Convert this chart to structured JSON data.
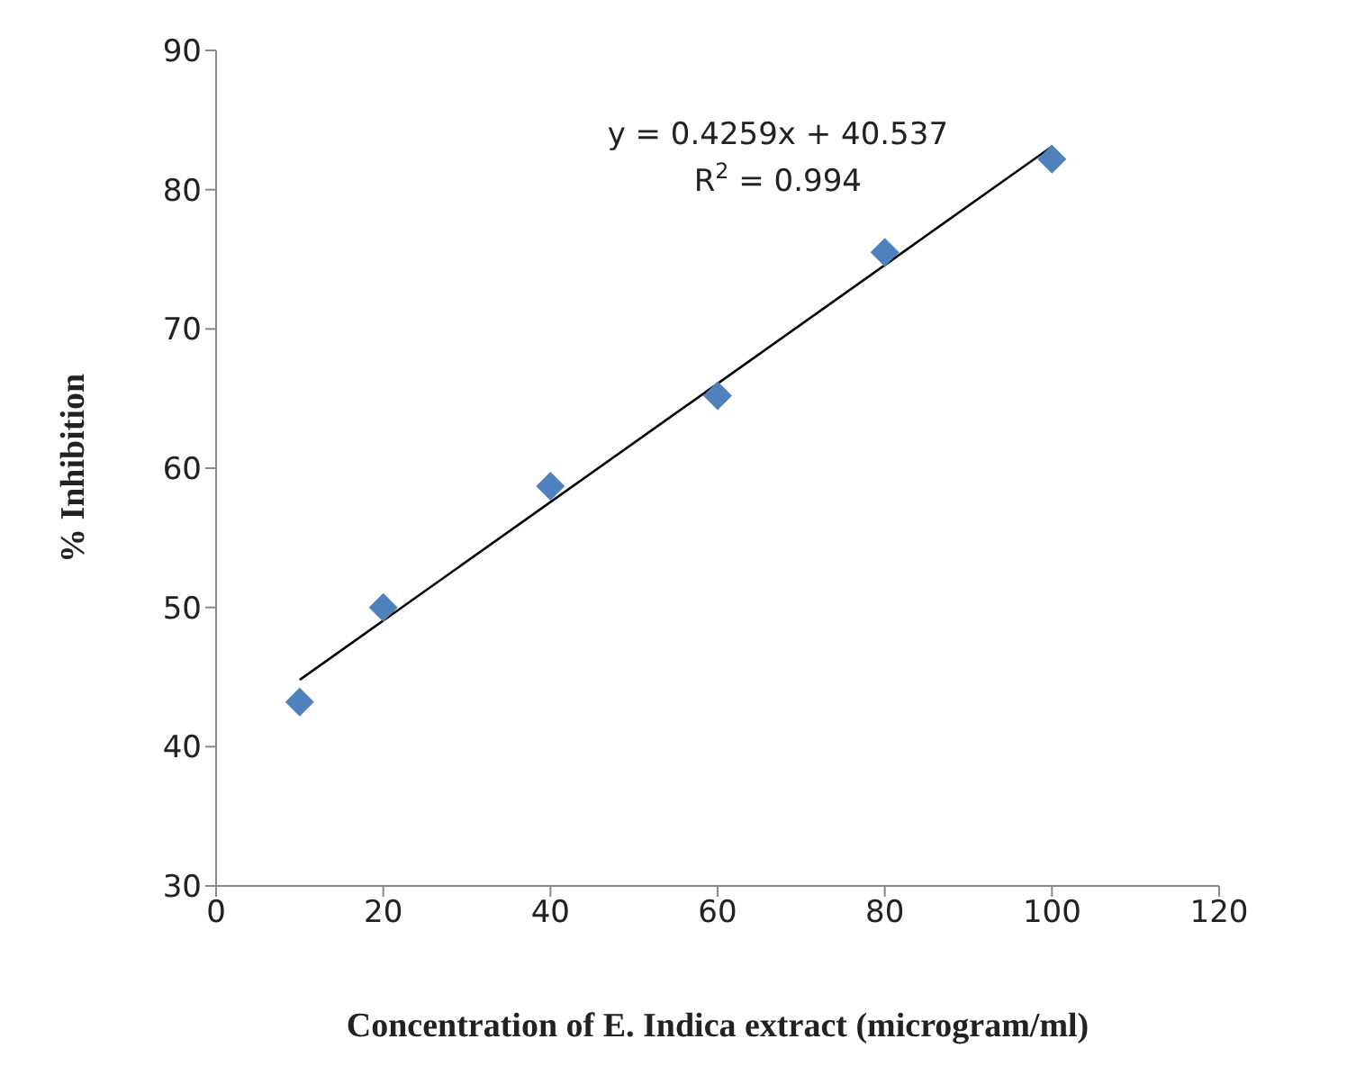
{
  "chart_data": {
    "type": "scatter",
    "xlabel": "Concentration of E. Indica extract (microgram/ml)",
    "ylabel": "% Inhibition",
    "series": [
      {
        "marker": "diamond",
        "color": "#4f81bd",
        "x": [
          10,
          20,
          40,
          60,
          80,
          100
        ],
        "values": [
          43.2,
          50.0,
          58.7,
          65.2,
          75.5,
          82.2
        ]
      },
      {
        "type": "line",
        "marker": "none",
        "color": "#000000",
        "x": [
          10,
          100
        ],
        "values": [
          44.8,
          83.1
        ]
      }
    ],
    "annotations": [
      "y = 0.4259x + 40.537",
      "R$^{2}$ = 0.994"
    ],
    "xlim": [
      0,
      120
    ],
    "xticks": [
      0,
      20,
      40,
      60,
      80,
      100,
      120
    ],
    "ylim": [
      30,
      90
    ],
    "yticks": [
      30,
      40,
      50,
      60,
      70,
      80,
      90
    ]
  }
}
